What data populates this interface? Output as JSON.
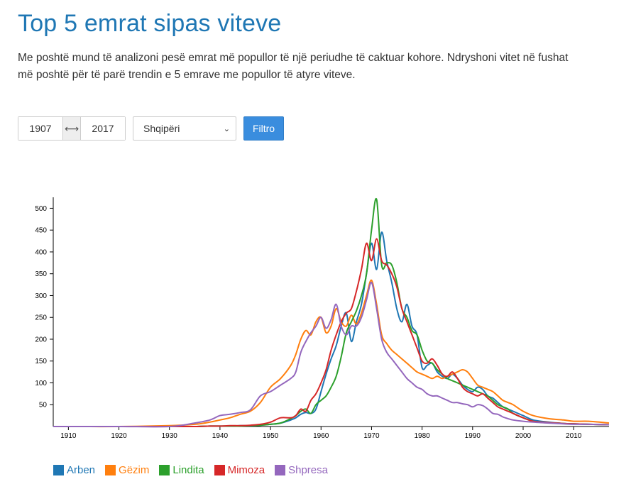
{
  "page": {
    "title": "Top 5 emrat sipas viteve",
    "description": "Me poshtë mund të analizoni pesë emrat më popullor të një periudhe të caktuar kohore. Ndryshoni vitet në fushat më poshtë për të parë trendin e 5 emrave me popullor të atyre viteve."
  },
  "filters": {
    "year_from": "1907",
    "year_to": "2017",
    "range_separator": "⟷",
    "country_selected": "Shqipëri",
    "filter_button": "Filtro"
  },
  "colors": {
    "title": "#1f77b4",
    "button": "#3a8dde"
  },
  "chart_data": {
    "type": "line",
    "xlim": [
      1907,
      2017
    ],
    "ylim": [
      0,
      530
    ],
    "x_ticks": [
      1910,
      1920,
      1930,
      1940,
      1950,
      1960,
      1970,
      1980,
      1990,
      2000,
      2010
    ],
    "y_ticks": [
      50,
      100,
      150,
      200,
      250,
      300,
      350,
      400,
      450,
      500
    ],
    "grid": false,
    "legend_position": "bottom-left",
    "x": [
      1907,
      1910,
      1920,
      1930,
      1935,
      1938,
      1940,
      1942,
      1944,
      1946,
      1948,
      1950,
      1952,
      1954,
      1955,
      1956,
      1957,
      1958,
      1959,
      1960,
      1961,
      1962,
      1963,
      1964,
      1965,
      1966,
      1967,
      1968,
      1969,
      1970,
      1971,
      1972,
      1973,
      1974,
      1975,
      1976,
      1977,
      1978,
      1979,
      1980,
      1981,
      1982,
      1983,
      1984,
      1985,
      1986,
      1987,
      1988,
      1989,
      1990,
      1991,
      1992,
      1993,
      1994,
      1995,
      1996,
      1997,
      1998,
      2000,
      2002,
      2005,
      2008,
      2010,
      2013,
      2017
    ],
    "series": [
      {
        "name": "Arben",
        "color": "#1f77b4",
        "values": [
          0,
          0,
          0,
          0,
          0,
          1,
          1,
          1,
          2,
          2,
          3,
          5,
          8,
          15,
          20,
          28,
          32,
          30,
          40,
          80,
          120,
          155,
          185,
          230,
          260,
          195,
          240,
          280,
          350,
          420,
          360,
          445,
          380,
          330,
          270,
          240,
          280,
          230,
          210,
          135,
          140,
          145,
          125,
          115,
          110,
          120,
          110,
          95,
          85,
          80,
          90,
          85,
          70,
          65,
          55,
          45,
          40,
          35,
          25,
          15,
          10,
          7,
          6,
          5,
          4
        ]
      },
      {
        "name": "Gëzim",
        "color": "#ff7f0e",
        "values": [
          0,
          0,
          0,
          2,
          5,
          10,
          15,
          20,
          28,
          35,
          55,
          90,
          110,
          140,
          165,
          200,
          220,
          210,
          240,
          250,
          215,
          230,
          270,
          240,
          230,
          255,
          235,
          260,
          300,
          335,
          280,
          210,
          190,
          175,
          165,
          155,
          145,
          135,
          125,
          120,
          115,
          110,
          115,
          110,
          115,
          120,
          125,
          130,
          125,
          110,
          95,
          90,
          85,
          80,
          70,
          60,
          55,
          50,
          35,
          25,
          18,
          15,
          12,
          12,
          8
        ]
      },
      {
        "name": "Lindita",
        "color": "#2ca02c",
        "values": [
          0,
          0,
          0,
          0,
          0,
          1,
          1,
          1,
          1,
          2,
          3,
          5,
          8,
          18,
          25,
          35,
          40,
          30,
          50,
          60,
          70,
          90,
          115,
          160,
          215,
          240,
          265,
          300,
          350,
          450,
          520,
          370,
          375,
          370,
          330,
          270,
          250,
          220,
          210,
          175,
          150,
          145,
          130,
          120,
          110,
          105,
          100,
          95,
          90,
          85,
          80,
          75,
          70,
          60,
          50,
          45,
          40,
          30,
          20,
          12,
          9,
          7,
          6,
          5,
          4
        ]
      },
      {
        "name": "Mimoza",
        "color": "#d62728",
        "values": [
          0,
          0,
          0,
          0,
          0,
          1,
          1,
          2,
          2,
          3,
          5,
          10,
          20,
          20,
          25,
          40,
          35,
          60,
          75,
          100,
          130,
          175,
          210,
          240,
          260,
          270,
          310,
          360,
          420,
          380,
          430,
          380,
          370,
          350,
          320,
          270,
          240,
          210,
          180,
          150,
          145,
          155,
          140,
          120,
          115,
          125,
          110,
          90,
          80,
          75,
          70,
          75,
          65,
          55,
          45,
          40,
          35,
          30,
          20,
          12,
          9,
          7,
          6,
          5,
          4
        ]
      },
      {
        "name": "Shpresa",
        "color": "#9467bd",
        "values": [
          0,
          0,
          0,
          0,
          8,
          15,
          25,
          28,
          32,
          38,
          70,
          80,
          95,
          110,
          125,
          170,
          195,
          215,
          230,
          250,
          225,
          245,
          280,
          230,
          210,
          230,
          230,
          250,
          290,
          330,
          270,
          200,
          170,
          155,
          140,
          125,
          110,
          100,
          90,
          85,
          75,
          70,
          70,
          65,
          60,
          55,
          55,
          52,
          50,
          45,
          50,
          48,
          40,
          30,
          28,
          22,
          18,
          15,
          12,
          10,
          8,
          6,
          5,
          5,
          4
        ]
      }
    ]
  }
}
